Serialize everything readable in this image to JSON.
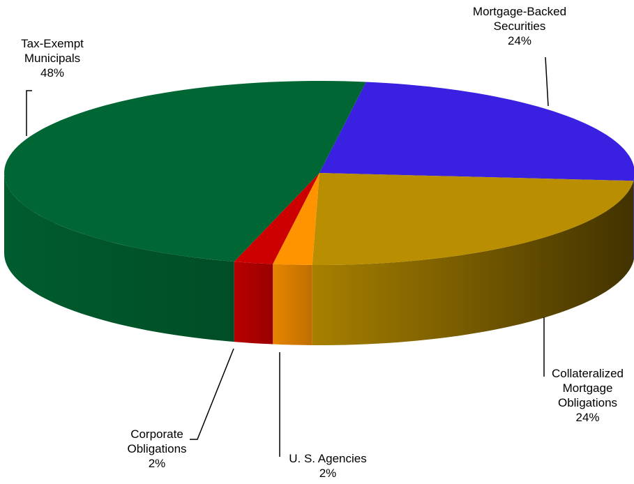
{
  "chart_data": {
    "type": "pie",
    "categories": [
      "Mortgage-Backed Securities",
      "Collateralized Mortgage Obligations",
      "U. S. Agencies",
      "Corporate Obligations",
      "Tax-Exempt Municipals"
    ],
    "values": [
      24,
      24,
      2,
      2,
      48
    ],
    "value_labels": [
      "24%",
      "24%",
      "2%",
      "2%",
      "48%"
    ],
    "colors": [
      "#3a20e0",
      "#b98e00",
      "#ff9400",
      "#cc0000",
      "#006633"
    ]
  }
}
